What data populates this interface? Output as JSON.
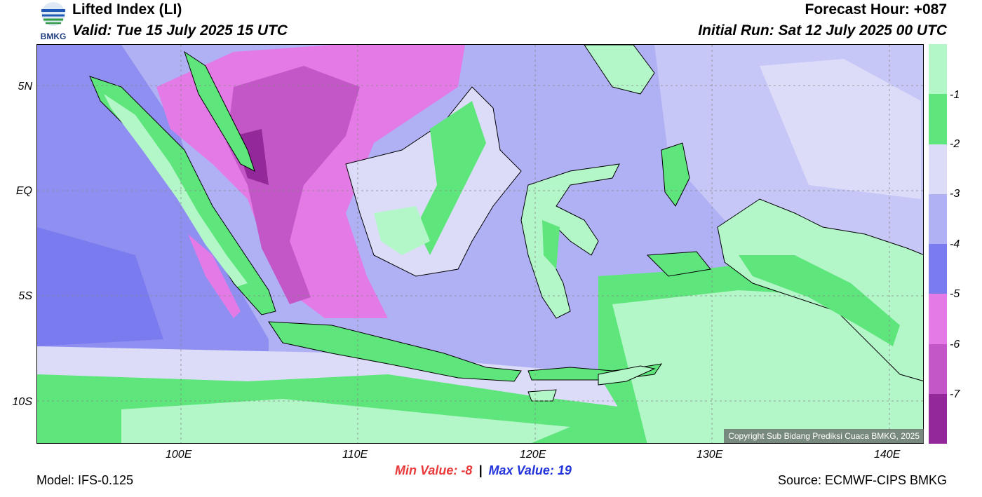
{
  "header": {
    "title": "Lifted Index (LI)",
    "valid": "Valid: Tue 15 July 2025 15 UTC",
    "forecast_hour": "Forecast Hour: +087",
    "initial_run": "Initial Run: Sat 12 July 2025 00 UTC"
  },
  "logo": {
    "text": "BMKG",
    "icon": "bmkg-logo-icon"
  },
  "map": {
    "lat_labels": [
      "5N",
      "EQ",
      "5S",
      "10S"
    ],
    "lon_labels": [
      "100E",
      "110E",
      "120E",
      "130E",
      "140E"
    ],
    "copyright": "Copyright Sub Bidang Prediksi Cuaca BMKG, 2025"
  },
  "colorbar": {
    "labels": [
      "-1",
      "-2",
      "-3",
      "-4",
      "-5",
      "-6",
      "-7"
    ],
    "colors": [
      "#b3f7c9",
      "#5ee57c",
      "#dcdcf9",
      "#b0b0f5",
      "#7b7bf0",
      "#e47ae6",
      "#c457c7",
      "#92289a"
    ]
  },
  "footer": {
    "model": "Model: IFS-0.125",
    "min_label": "Min Value:",
    "min_value": "-8",
    "separator": "|",
    "max_label": "Max Value:",
    "max_value": "19",
    "source": "Source: ECMWF-CIPS BMKG",
    "min_color": "#e83a3a",
    "max_color": "#2133d9"
  }
}
